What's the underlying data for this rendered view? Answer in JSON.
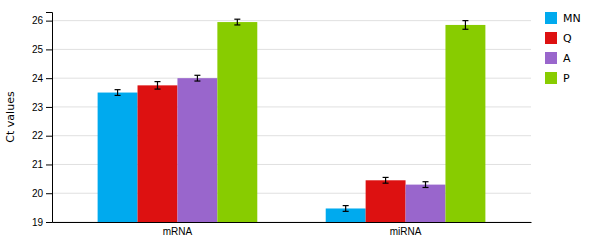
{
  "chart_data": {
    "type": "bar",
    "categories": [
      "mRNA",
      "miRNA"
    ],
    "series": [
      {
        "name": "MN",
        "color": "#00AAEE",
        "values": [
          23.5,
          19.47
        ],
        "errors": [
          0.1,
          0.1
        ]
      },
      {
        "name": "Q",
        "color": "#DD1111",
        "values": [
          23.75,
          20.45
        ],
        "errors": [
          0.13,
          0.1
        ]
      },
      {
        "name": "A",
        "color": "#9966CC",
        "values": [
          24.0,
          20.3
        ],
        "errors": [
          0.1,
          0.1
        ]
      },
      {
        "name": "P",
        "color": "#88CC00",
        "values": [
          25.95,
          25.85
        ],
        "errors": [
          0.1,
          0.15
        ]
      }
    ],
    "ylabel": "Ct values",
    "ylim": [
      19,
      26.3
    ],
    "yticks": [
      19,
      20,
      21,
      22,
      23,
      24,
      25,
      26
    ],
    "grid": true,
    "legend": "upper right"
  }
}
